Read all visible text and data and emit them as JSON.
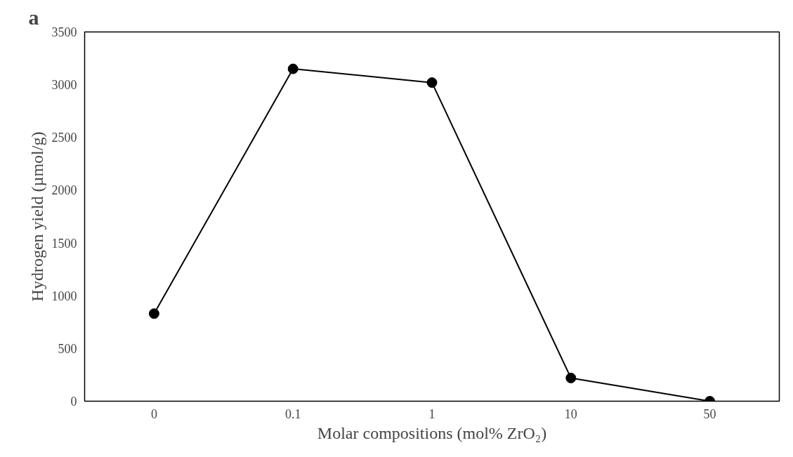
{
  "chart_data": {
    "type": "line",
    "title": "a",
    "xlabel": "Molar compositions (mol% ZrO₂)",
    "ylabel": "Hydrogen yield (µmol/g)",
    "categories": [
      "0",
      "0.1",
      "1",
      "10",
      "50"
    ],
    "series": [
      {
        "color": "#000000",
        "values": [
          830,
          3150,
          3020,
          220,
          0
        ]
      }
    ],
    "ylim": [
      0,
      3500
    ],
    "yticks": [
      0,
      500,
      1000,
      1500,
      2000,
      2500,
      3000,
      3500
    ],
    "marker": "circle",
    "line_style": "solid"
  }
}
